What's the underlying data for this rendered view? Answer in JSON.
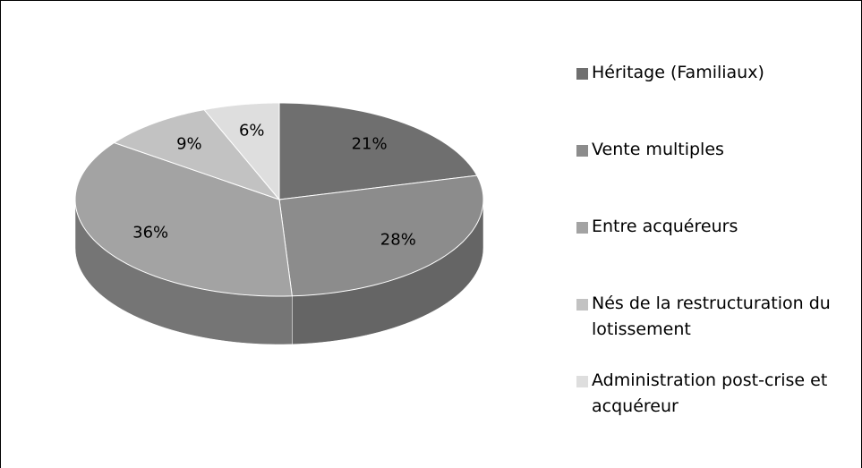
{
  "chart_data": {
    "type": "pie3d",
    "categories": [
      "Héritage (Familiaux)",
      "Vente multiples",
      "Entre acquéreurs",
      "Nés de la restructuration du lotissement",
      "Administration post-crise et acquéreur"
    ],
    "values": [
      21,
      28,
      36,
      9,
      6
    ],
    "value_labels": [
      "21%",
      "28%",
      "36%",
      "9%",
      "6%"
    ],
    "colors": [
      "#6f6f6f",
      "#8c8c8c",
      "#a3a3a3",
      "#c2c2c2",
      "#dedede"
    ],
    "legend": "right"
  }
}
